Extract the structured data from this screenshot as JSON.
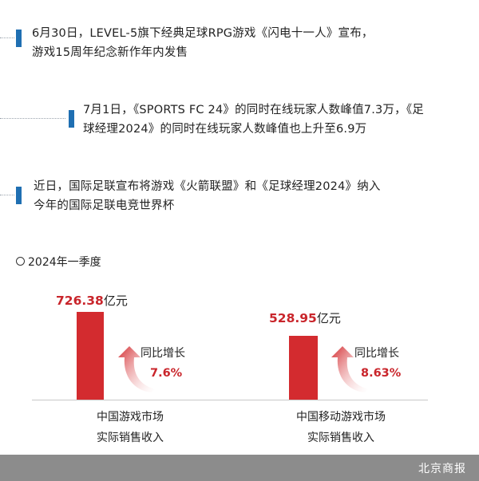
{
  "events": [
    {
      "lines": [
        "6月30日，LEVEL-5旗下经典足球RPG游戏《闪电十一人》宣布，",
        "游戏15周年纪念新作年内发售"
      ]
    },
    {
      "lines": [
        "7月1日，《SPORTS FC 24》的同时在线玩家人数峰值7.3万，《足",
        "球经理2024》的同时在线玩家人数峰值也上升至6.9万"
      ]
    },
    {
      "lines": [
        "近日，国际足联宣布将游戏《火箭联盟》和《足球经理2024》纳入",
        "今年的国际足联电竞世界杯"
      ]
    }
  ],
  "section": {
    "label": "2024年一季度"
  },
  "chart_data": {
    "type": "bar",
    "categories": [
      "中国游戏市场实际销售收入",
      "中国移动游戏市场实际销售收入"
    ],
    "values": [
      726.38,
      528.95
    ],
    "unit": "亿元",
    "growth_label": "同比增长",
    "growth": [
      "7.6%",
      "8.63%"
    ]
  },
  "bars": [
    {
      "value_text": "726.38",
      "unit": "亿元",
      "growth_label": "同比增长",
      "growth": "7.6%",
      "caption": [
        "中国游戏市场",
        "实际销售收入"
      ]
    },
    {
      "value_text": "528.95",
      "unit": "亿元",
      "growth_label": "同比增长",
      "growth": "8.63%",
      "caption": [
        "中国移动游戏市场",
        "实际销售收入"
      ]
    }
  ],
  "footer": {
    "brand": "北京商报"
  },
  "colors": {
    "accent_red": "#d32b2f",
    "marker_blue": "#1f6fb2",
    "footer_gray": "#8c8c8c"
  }
}
